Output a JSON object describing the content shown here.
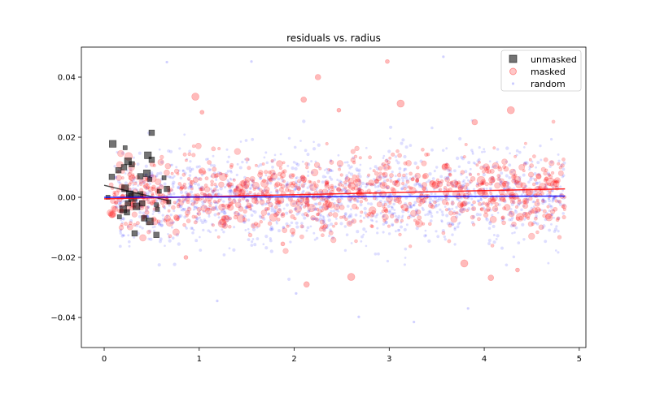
{
  "chart_data": {
    "type": "scatter",
    "title": "residuals vs. radius",
    "xlabel": "",
    "ylabel": "",
    "xlim": [
      -0.24,
      5.07
    ],
    "ylim": [
      -0.05,
      0.05
    ],
    "x_ticks": [
      0,
      1,
      2,
      3,
      4,
      5
    ],
    "x_tick_labels": [
      "0",
      "1",
      "2",
      "3",
      "4",
      "5"
    ],
    "y_ticks": [
      -0.04,
      -0.02,
      0.0,
      0.02,
      0.04
    ],
    "y_tick_labels": [
      "−0.04",
      "−0.02",
      "0.00",
      "0.02",
      "0.04"
    ],
    "grid": false,
    "legend_position": "top-right",
    "series": [
      {
        "name": "unmasked",
        "marker": "square",
        "color": "#000000",
        "alpha": 0.55,
        "points": [
          {
            "x": 0.09,
            "y": 0.0178,
            "s": 5
          },
          {
            "x": 0.08,
            "y": 0.0068,
            "s": 4
          },
          {
            "x": 0.04,
            "y": 0.0,
            "s": 3
          },
          {
            "x": 0.15,
            "y": 0.009,
            "s": 4
          },
          {
            "x": 0.22,
            "y": 0.0165,
            "s": 3
          },
          {
            "x": 0.21,
            "y": 0.01,
            "s": 4
          },
          {
            "x": 0.25,
            "y": 0.012,
            "s": 5
          },
          {
            "x": 0.29,
            "y": 0.011,
            "s": 4
          },
          {
            "x": 0.22,
            "y": 0.003,
            "s": 5
          },
          {
            "x": 0.27,
            "y": 0.001,
            "s": 5
          },
          {
            "x": 0.3,
            "y": 0.0,
            "s": 6
          },
          {
            "x": 0.25,
            "y": -0.002,
            "s": 4
          },
          {
            "x": 0.2,
            "y": -0.004,
            "s": 5
          },
          {
            "x": 0.24,
            "y": -0.005,
            "s": 4
          },
          {
            "x": 0.16,
            "y": -0.0065,
            "s": 3
          },
          {
            "x": 0.32,
            "y": -0.012,
            "s": 4
          },
          {
            "x": 0.34,
            "y": -0.003,
            "s": 5
          },
          {
            "x": 0.38,
            "y": 0.001,
            "s": 4
          },
          {
            "x": 0.4,
            "y": -0.002,
            "s": 4
          },
          {
            "x": 0.38,
            "y": 0.007,
            "s": 4
          },
          {
            "x": 0.45,
            "y": 0.008,
            "s": 5
          },
          {
            "x": 0.42,
            "y": -0.007,
            "s": 4
          },
          {
            "x": 0.48,
            "y": -0.008,
            "s": 5
          },
          {
            "x": 0.46,
            "y": 0.014,
            "s": 5
          },
          {
            "x": 0.5,
            "y": 0.0125,
            "s": 4
          },
          {
            "x": 0.5,
            "y": 0.0215,
            "s": 4
          },
          {
            "x": 0.48,
            "y": 0.006,
            "s": 3
          },
          {
            "x": 0.55,
            "y": -0.0025,
            "s": 3
          },
          {
            "x": 0.56,
            "y": -0.004,
            "s": 3
          },
          {
            "x": 0.55,
            "y": -0.0125,
            "s": 4
          },
          {
            "x": 0.58,
            "y": 0.002,
            "s": 3
          },
          {
            "x": 0.63,
            "y": 0.0065,
            "s": 3
          },
          {
            "x": 0.66,
            "y": 0.0028,
            "s": 4
          },
          {
            "x": 0.68,
            "y": -0.0015,
            "s": 3
          }
        ]
      },
      {
        "name": "masked",
        "marker": "circle",
        "color": "#ff0000",
        "alpha": 0.22,
        "generated": {
          "count": 950,
          "x_range": [
            0.05,
            4.85
          ],
          "spread": 0.0062,
          "seed": 7
        },
        "outliers": [
          {
            "x": 2.98,
            "y": 0.0452
          },
          {
            "x": 2.25,
            "y": 0.04
          },
          {
            "x": 0.96,
            "y": 0.0335
          },
          {
            "x": 1.03,
            "y": 0.0283
          },
          {
            "x": 2.1,
            "y": 0.0325
          },
          {
            "x": 3.12,
            "y": 0.0312
          },
          {
            "x": 2.47,
            "y": 0.029
          },
          {
            "x": 3.9,
            "y": 0.025
          },
          {
            "x": 4.28,
            "y": 0.029
          },
          {
            "x": 0.86,
            "y": -0.02
          },
          {
            "x": 2.13,
            "y": -0.029
          },
          {
            "x": 2.6,
            "y": -0.0265
          },
          {
            "x": 4.35,
            "y": -0.0242
          },
          {
            "x": 4.07,
            "y": -0.0268
          },
          {
            "x": 3.79,
            "y": -0.022
          },
          {
            "x": 1.88,
            "y": -0.0155
          }
        ]
      },
      {
        "name": "random",
        "marker": "circle",
        "color": "#0000ff",
        "alpha": 0.13,
        "generated": {
          "count": 1500,
          "x_range": [
            0.1,
            4.85
          ],
          "spread": 0.0075,
          "seed": 23
        },
        "outliers": [
          {
            "x": 0.66,
            "y": 0.045
          },
          {
            "x": 1.55,
            "y": 0.0452
          },
          {
            "x": 3.57,
            "y": 0.0468
          },
          {
            "x": 1.19,
            "y": -0.0345
          },
          {
            "x": 2.68,
            "y": -0.0398
          },
          {
            "x": 3.26,
            "y": -0.0415
          },
          {
            "x": 3.83,
            "y": -0.037
          },
          {
            "x": 2.02,
            "y": -0.032
          }
        ]
      }
    ],
    "fit_lines": [
      {
        "name": "unmasked-fit",
        "color": "#000000",
        "alpha": 0.7,
        "x": [
          0.0,
          0.66
        ],
        "y": [
          0.004,
          -0.001
        ]
      },
      {
        "name": "masked-fit",
        "color": "#ff0000",
        "alpha": 0.85,
        "x": [
          0.0,
          4.85
        ],
        "y": [
          -0.0005,
          0.0028
        ]
      },
      {
        "name": "random-fit",
        "color": "#0000ff",
        "alpha": 0.85,
        "x": [
          0.0,
          4.85
        ],
        "y": [
          0.0,
          0.0004
        ]
      }
    ]
  }
}
